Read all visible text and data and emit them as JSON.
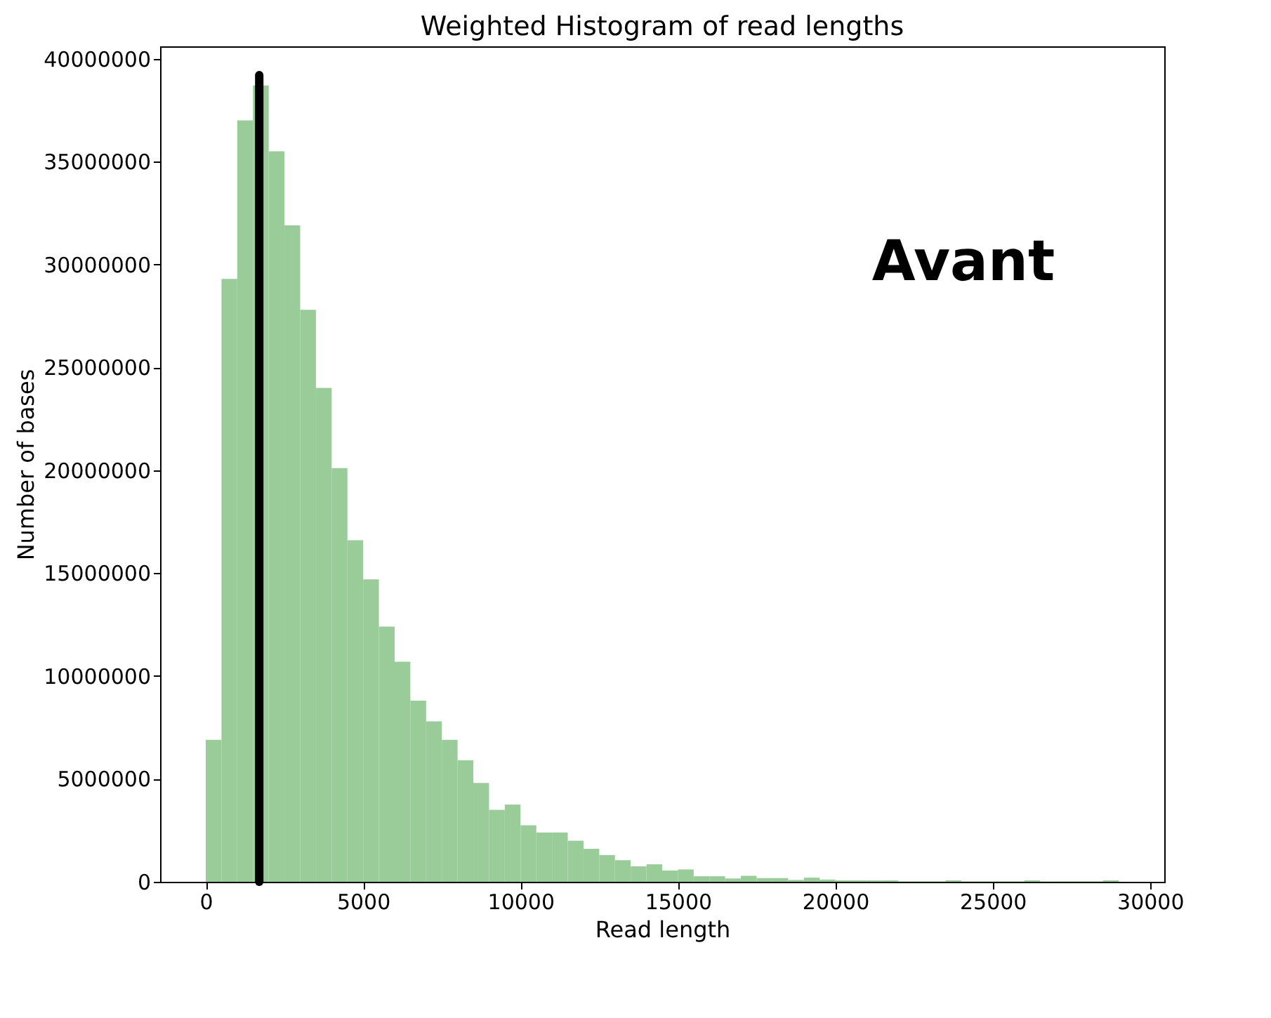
{
  "chart_data": {
    "type": "histogram",
    "title": "Weighted Histogram of read lengths",
    "xlabel": "Read length",
    "ylabel": "Number of bases",
    "bins": [
      0,
      500,
      1000,
      1500,
      2000,
      2500,
      3000,
      3500,
      4000,
      4500,
      5000,
      5500,
      6000,
      6500,
      7000,
      7500,
      8000,
      8500,
      9000,
      9500,
      10000,
      10500,
      11000,
      11500,
      12000,
      12500,
      13000,
      13500,
      14000,
      14500,
      15000,
      15500,
      16000,
      16500,
      17000,
      17500,
      18000,
      18500,
      19000,
      19500,
      20000,
      20500,
      21000,
      21500,
      22000,
      22500,
      23000,
      23500,
      24000,
      24500,
      25000,
      25500,
      26000,
      26500,
      27000,
      27500,
      28000,
      28500,
      29000
    ],
    "values": [
      6900000,
      29300000,
      37000000,
      38700000,
      35500000,
      31900000,
      27800000,
      24000000,
      20100000,
      16600000,
      14700000,
      12400000,
      10700000,
      8800000,
      7800000,
      6900000,
      5900000,
      4800000,
      3500000,
      3750000,
      2750000,
      2400000,
      2400000,
      2000000,
      1600000,
      1300000,
      1050000,
      750000,
      850000,
      550000,
      600000,
      270000,
      270000,
      160000,
      290000,
      180000,
      180000,
      90000,
      200000,
      110000,
      70000,
      70000,
      70000,
      70000,
      20000,
      20000,
      20000,
      70000,
      20000,
      20000,
      20000,
      20000,
      70000,
      20000,
      20000,
      20000,
      20000,
      70000
    ],
    "color": "#99cc99",
    "series": [
      {
        "type": "line",
        "x": [
          1700,
          1700
        ],
        "values": [
          0,
          39200000
        ],
        "color": "#000000"
      }
    ],
    "annotations": [
      "Avant"
    ],
    "xlim": [
      -1450,
      30450
    ],
    "ylim": [
      0,
      40600000
    ],
    "xticks": [
      0,
      5000,
      10000,
      15000,
      20000,
      25000,
      30000
    ],
    "yticks": [
      0,
      5000000,
      10000000,
      15000000,
      20000000,
      25000000,
      30000000,
      35000000,
      40000000
    ],
    "grid": false
  }
}
